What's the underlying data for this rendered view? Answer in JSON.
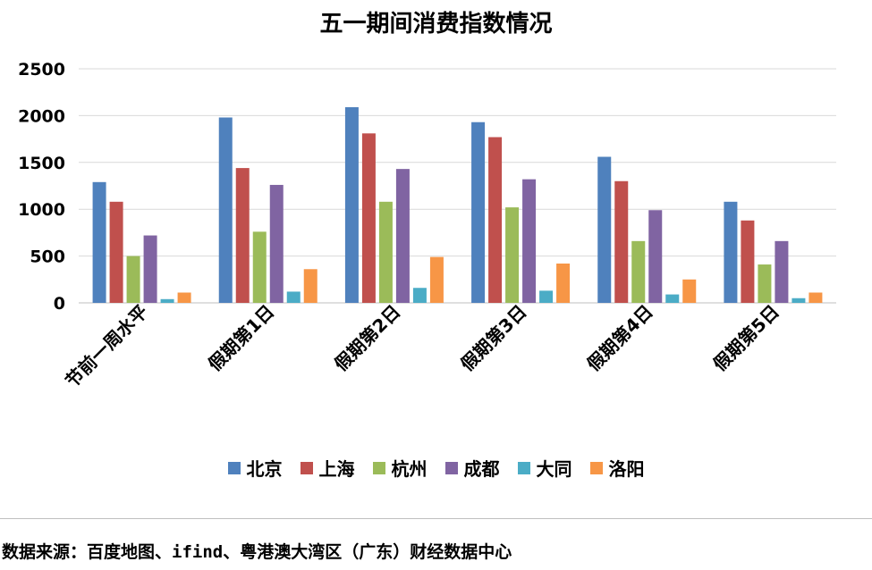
{
  "chart_data": {
    "type": "bar",
    "title": "五一期间消费指数情况",
    "categories": [
      "节前一周水平",
      "假期第1日",
      "假期第2日",
      "假期第3日",
      "假期第4日",
      "假期第5日"
    ],
    "series": [
      {
        "name": "北京",
        "color": "#4f81bd",
        "values": [
          1290,
          1980,
          2090,
          1930,
          1560,
          1080
        ]
      },
      {
        "name": "上海",
        "color": "#c0504d",
        "values": [
          1080,
          1440,
          1810,
          1770,
          1300,
          880
        ]
      },
      {
        "name": "杭州",
        "color": "#9bbb59",
        "values": [
          500,
          760,
          1080,
          1020,
          660,
          410
        ]
      },
      {
        "name": "成都",
        "color": "#8064a2",
        "values": [
          720,
          1260,
          1430,
          1320,
          990,
          660
        ]
      },
      {
        "name": "大同",
        "color": "#4bacc6",
        "values": [
          40,
          120,
          160,
          130,
          90,
          50
        ]
      },
      {
        "name": "洛阳",
        "color": "#f79646",
        "values": [
          110,
          360,
          490,
          420,
          250,
          110
        ]
      }
    ],
    "ylim": [
      0,
      2500
    ],
    "yticks": [
      0,
      500,
      1000,
      1500,
      2000,
      2500
    ],
    "grid": true,
    "legend_position": "bottom"
  },
  "footer": {
    "source": "数据来源：百度地图、ifind、粤港澳大湾区（广东）财经数据中心"
  }
}
